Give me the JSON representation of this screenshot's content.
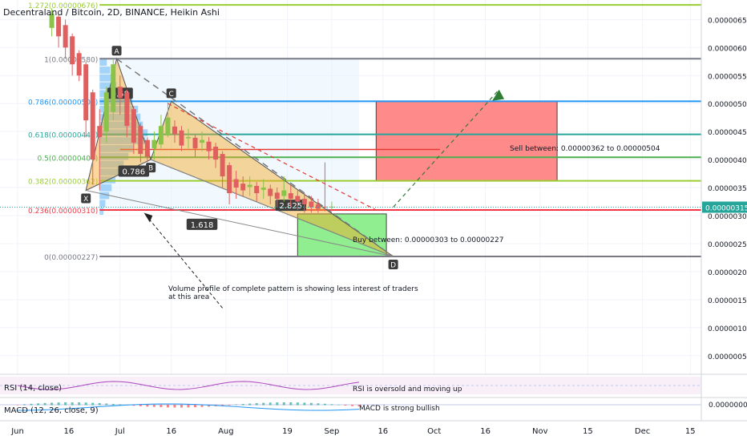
{
  "chart_data": {
    "type": "candlestick",
    "title": "Decentraland / Bitcoin, 2D, BINANCE, Heikin Ashi",
    "price_axis": {
      "range": [
        0.0,
        6.8e-06
      ],
      "ticks": [
        "0.00000650",
        "0.00000600",
        "0.00000550",
        "0.00000500",
        "0.00000450",
        "0.00000400",
        "0.00000350",
        "0.00000300",
        "0.00000250",
        "0.00000200",
        "0.00000150",
        "0.00000100",
        "0.00000050"
      ],
      "tick_values": [
        6.5,
        6.0,
        5.5,
        5.0,
        4.5,
        4.0,
        3.5,
        3.0,
        2.5,
        2.0,
        1.5,
        1.0,
        0.5
      ],
      "current_price_label": "0.00000315",
      "current_price": 3.15
    },
    "time_axis": {
      "ticks": [
        "Jun",
        "16",
        "Jul",
        "16",
        "Aug",
        "19",
        "Sep",
        "16",
        "Oct",
        "16",
        "Nov",
        "15",
        "Dec",
        "15"
      ],
      "tick_days": [
        0,
        15,
        30,
        45,
        61,
        79,
        92,
        107,
        122,
        137,
        153,
        167,
        183,
        197
      ]
    },
    "fib_levels": [
      {
        "label": "1.272(0.00000676)",
        "value": 6.76,
        "color": "#9acd32"
      },
      {
        "label": "1(0.00000580)",
        "value": 5.8,
        "color": "#787b86"
      },
      {
        "label": "0.786(0.00000504)",
        "value": 5.04,
        "color": "#2196f3"
      },
      {
        "label": "0.618(0.00000445)",
        "value": 4.45,
        "color": "#26a69a"
      },
      {
        "label": "0.5(0.00000404)",
        "value": 4.04,
        "color": "#4caf50"
      },
      {
        "label": "0.382(0.00000362)",
        "value": 3.62,
        "color": "#9acd32"
      },
      {
        "label": "0.236(0.00000310)",
        "value": 3.1,
        "color": "#f23645"
      },
      {
        "label": "0(0.00000227)",
        "value": 2.27,
        "color": "#787b86"
      }
    ],
    "pattern_points": [
      {
        "label": "X",
        "day": 20,
        "value": 3.45
      },
      {
        "label": "A",
        "day": 29,
        "value": 5.8
      },
      {
        "label": "B",
        "day": 39,
        "value": 4.0
      },
      {
        "label": "C",
        "day": 45,
        "value": 5.04
      },
      {
        "label": "D",
        "day": 110,
        "value": 2.27
      }
    ],
    "ratios": [
      {
        "label": "0.58",
        "day": 30,
        "value": 5.17
      },
      {
        "label": "0.786",
        "day": 34,
        "value": 3.78
      },
      {
        "label": "2.825",
        "day": 80,
        "value": 3.17
      },
      {
        "label": "1.618",
        "day": 54,
        "value": 2.83
      }
    ],
    "annotations": {
      "sell": "Sell between: 0.00000362 to 0.00000504",
      "buy": "Buy between: 0.00000303 to 0.00000227",
      "volume_note_line1": "Volume profile of complete pattern is showing less interest of traders",
      "volume_note_line2": "at this area",
      "rsi_note": "RSI is oversold and moving up",
      "macd_note": "MACD is strong bullish"
    },
    "zones": {
      "sell": {
        "day_start": 105,
        "day_end": 158,
        "value_low": 3.62,
        "value_high": 5.04,
        "color": "#ff8a8a"
      },
      "buy": {
        "day_start": 82,
        "day_end": 108,
        "value_low": 2.27,
        "value_high": 3.03,
        "color": "#90ee90"
      }
    },
    "red_hline": {
      "value": 4.18,
      "day_start": 30,
      "day_end": 65
    },
    "candles": [
      {
        "d": 10,
        "o": 6.35,
        "c": 6.6,
        "h": 6.7,
        "l": 6.2
      },
      {
        "d": 12,
        "o": 6.55,
        "c": 6.2,
        "h": 6.6,
        "l": 6.0
      },
      {
        "d": 14,
        "o": 6.4,
        "c": 6.0,
        "h": 6.5,
        "l": 5.8
      },
      {
        "d": 16,
        "o": 6.2,
        "c": 5.7,
        "h": 6.25,
        "l": 5.5
      },
      {
        "d": 18,
        "o": 5.9,
        "c": 5.5,
        "h": 5.95,
        "l": 5.4
      },
      {
        "d": 20,
        "o": 5.7,
        "c": 4.7,
        "h": 5.75,
        "l": 4.4
      },
      {
        "d": 22,
        "o": 5.2,
        "c": 4.0,
        "h": 5.25,
        "l": 3.55
      },
      {
        "d": 24,
        "o": 4.6,
        "c": 4.4,
        "h": 4.9,
        "l": 3.45
      },
      {
        "d": 26,
        "o": 4.5,
        "c": 5.2,
        "h": 5.3,
        "l": 4.3
      },
      {
        "d": 28,
        "o": 4.85,
        "c": 5.7,
        "h": 5.8,
        "l": 4.7
      },
      {
        "d": 30,
        "o": 5.3,
        "c": 5.1,
        "h": 5.5,
        "l": 4.8
      },
      {
        "d": 32,
        "o": 5.2,
        "c": 4.6,
        "h": 5.25,
        "l": 4.4
      },
      {
        "d": 34,
        "o": 4.9,
        "c": 4.3,
        "h": 4.95,
        "l": 4.1
      },
      {
        "d": 36,
        "o": 4.6,
        "c": 4.1,
        "h": 4.65,
        "l": 3.95
      },
      {
        "d": 38,
        "o": 4.35,
        "c": 4.05,
        "h": 4.4,
        "l": 3.95
      },
      {
        "d": 40,
        "o": 4.2,
        "c": 4.35,
        "h": 4.5,
        "l": 4.0
      },
      {
        "d": 42,
        "o": 4.27,
        "c": 4.6,
        "h": 4.8,
        "l": 4.2
      },
      {
        "d": 44,
        "o": 4.43,
        "c": 4.75,
        "h": 5.04,
        "l": 4.4
      },
      {
        "d": 46,
        "o": 4.59,
        "c": 4.45,
        "h": 4.7,
        "l": 4.3
      },
      {
        "d": 48,
        "o": 4.52,
        "c": 4.25,
        "h": 4.6,
        "l": 4.15
      },
      {
        "d": 50,
        "o": 4.38,
        "c": 4.4,
        "h": 4.55,
        "l": 4.2
      },
      {
        "d": 52,
        "o": 4.39,
        "c": 4.2,
        "h": 4.45,
        "l": 4.05
      },
      {
        "d": 54,
        "o": 4.3,
        "c": 4.35,
        "h": 4.5,
        "l": 4.15
      },
      {
        "d": 56,
        "o": 4.32,
        "c": 4.15,
        "h": 4.4,
        "l": 4.0
      },
      {
        "d": 58,
        "o": 4.23,
        "c": 4.0,
        "h": 4.3,
        "l": 3.85
      },
      {
        "d": 60,
        "o": 4.1,
        "c": 3.7,
        "h": 4.15,
        "l": 3.5
      },
      {
        "d": 62,
        "o": 3.9,
        "c": 3.4,
        "h": 3.95,
        "l": 3.2
      },
      {
        "d": 64,
        "o": 3.65,
        "c": 3.5,
        "h": 3.8,
        "l": 3.3
      },
      {
        "d": 66,
        "o": 3.57,
        "c": 3.45,
        "h": 3.7,
        "l": 3.35
      },
      {
        "d": 68,
        "o": 3.51,
        "c": 3.55,
        "h": 3.7,
        "l": 3.35
      },
      {
        "d": 70,
        "o": 3.53,
        "c": 3.4,
        "h": 3.6,
        "l": 3.25
      },
      {
        "d": 72,
        "o": 3.46,
        "c": 3.5,
        "h": 3.65,
        "l": 3.3
      },
      {
        "d": 74,
        "o": 3.48,
        "c": 3.35,
        "h": 3.55,
        "l": 3.2
      },
      {
        "d": 76,
        "o": 3.41,
        "c": 3.3,
        "h": 3.5,
        "l": 3.15
      },
      {
        "d": 78,
        "o": 3.35,
        "c": 3.45,
        "h": 3.7,
        "l": 3.25
      },
      {
        "d": 80,
        "o": 3.4,
        "c": 3.3,
        "h": 3.55,
        "l": 3.15
      },
      {
        "d": 82,
        "o": 3.35,
        "c": 3.25,
        "h": 3.45,
        "l": 3.1
      },
      {
        "d": 84,
        "o": 3.3,
        "c": 3.2,
        "h": 3.4,
        "l": 3.05
      },
      {
        "d": 86,
        "o": 3.25,
        "c": 3.15,
        "h": 3.35,
        "l": 3.05
      },
      {
        "d": 88,
        "o": 3.2,
        "c": 3.12,
        "h": 3.3,
        "l": 3.05
      },
      {
        "d": 90,
        "o": 3.16,
        "c": 3.15,
        "h": 3.95,
        "l": 3.08
      },
      {
        "d": 92,
        "o": 3.15,
        "c": 3.16,
        "h": 3.25,
        "l": 3.1
      }
    ],
    "volume_profile": [
      0.15,
      0.22,
      0.28,
      0.35,
      0.55,
      0.68,
      0.8,
      0.85,
      0.9,
      1.0,
      0.95,
      0.72,
      0.6,
      0.5,
      0.42,
      0.33,
      0.25,
      0.2,
      0.12,
      0.08
    ],
    "rsi": {
      "label": "RSI (14, close)"
    },
    "macd": {
      "label": "MACD (12, 26, close, 9)",
      "zero_label": "0.00000000"
    }
  }
}
